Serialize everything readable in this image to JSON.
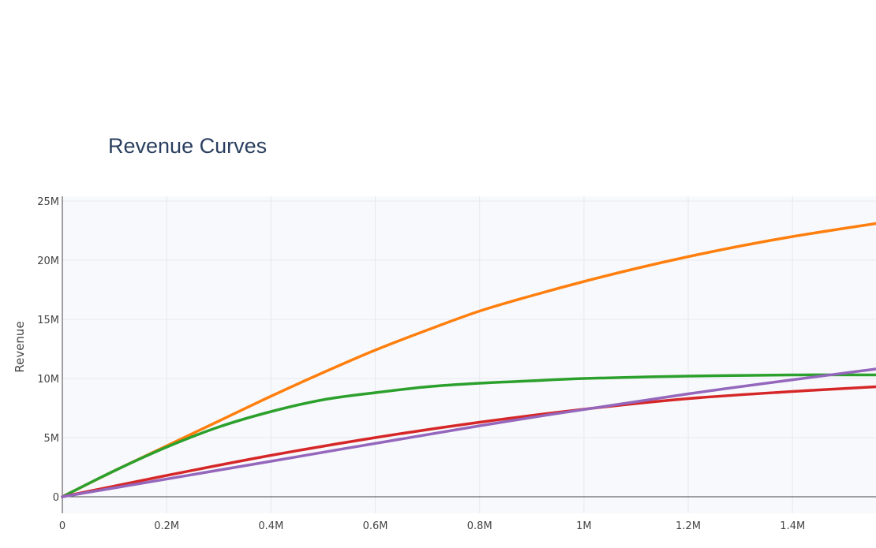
{
  "chart_data": {
    "type": "line",
    "title": "Revenue Curves",
    "xlabel": "",
    "ylabel": "Revenue",
    "xlim": [
      0,
      1560000
    ],
    "ylim": [
      0,
      25000000
    ],
    "grid": true,
    "x_ticks": [
      {
        "value": 0,
        "label": "0"
      },
      {
        "value": 200000,
        "label": "0.2M"
      },
      {
        "value": 400000,
        "label": "0.4M"
      },
      {
        "value": 600000,
        "label": "0.6M"
      },
      {
        "value": 800000,
        "label": "0.8M"
      },
      {
        "value": 1000000,
        "label": "1M"
      },
      {
        "value": 1200000,
        "label": "1.2M"
      },
      {
        "value": 1400000,
        "label": "1.4M"
      }
    ],
    "y_ticks": [
      {
        "value": 0,
        "label": "0"
      },
      {
        "value": 5000000,
        "label": "5M"
      },
      {
        "value": 10000000,
        "label": "10M"
      },
      {
        "value": 15000000,
        "label": "15M"
      },
      {
        "value": 20000000,
        "label": "20M"
      },
      {
        "value": 25000000,
        "label": "25M"
      }
    ],
    "series": [
      {
        "color": "#ff7f0e",
        "x": [
          0,
          100000,
          200000,
          300000,
          400000,
          500000,
          600000,
          700000,
          800000,
          900000,
          1000000,
          1100000,
          1200000,
          1300000,
          1400000,
          1500000,
          1560000
        ],
        "y": [
          0,
          2200000,
          4300000,
          6400000,
          8500000,
          10500000,
          12400000,
          14100000,
          15700000,
          17000000,
          18200000,
          19300000,
          20300000,
          21200000,
          22000000,
          22700000,
          23100000
        ]
      },
      {
        "color": "#2ca02c",
        "x": [
          0,
          100000,
          200000,
          300000,
          400000,
          500000,
          600000,
          700000,
          800000,
          900000,
          1000000,
          1200000,
          1400000,
          1560000
        ],
        "y": [
          0,
          2200000,
          4200000,
          5900000,
          7200000,
          8200000,
          8800000,
          9300000,
          9600000,
          9800000,
          10000000,
          10200000,
          10300000,
          10300000
        ]
      },
      {
        "color": "#d62728",
        "x": [
          0,
          200000,
          400000,
          600000,
          800000,
          1000000,
          1200000,
          1400000,
          1560000
        ],
        "y": [
          0,
          1800000,
          3500000,
          5000000,
          6300000,
          7400000,
          8300000,
          8900000,
          9300000
        ]
      },
      {
        "color": "#9467bd",
        "x": [
          0,
          400000,
          800000,
          1200000,
          1560000
        ],
        "y": [
          0,
          3000000,
          6000000,
          8700000,
          10800000
        ]
      }
    ]
  }
}
